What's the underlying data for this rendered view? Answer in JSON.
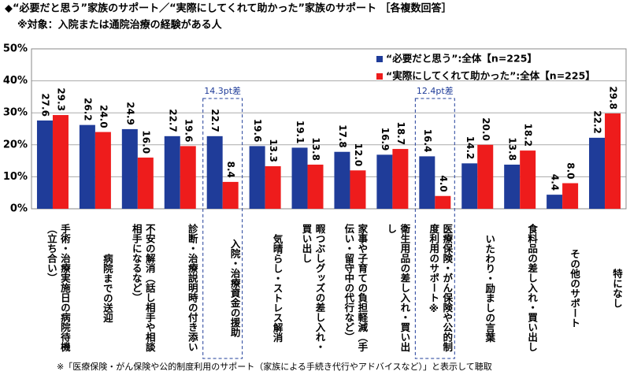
{
  "chart_data": {
    "type": "bar",
    "title": "◆“必要だと思う”家族のサポート／“実際にしてくれて助かった”家族のサポート ［各複数回答］",
    "subtitle": "※対象：入院または通院治療の経験がある人",
    "footnote": "※「医療保険・がん保険や公的制度利用のサポート（家族による手続き代行やアドバイスなど）」と表示して聴取",
    "categories": [
      "手術・治療実施日の病院待機（立ち合い）",
      "病院までの送迎",
      "不安の解消（話し相手や相談相手になるなど）",
      "診断・治療説明時の付き添い",
      "入院・治療資金の援助",
      "気晴らし・ストレス解消",
      "暇つぶしグッズの差し入れ・買い出し",
      "家事や子育ての負担軽減（手伝い・留守中の代行など）",
      "衛生用品の差し入れ・買い出し",
      "医療保険・がん保険や公的制度利用のサポート※",
      "いたわり・励ましの言葉",
      "食料品の差し入れ・買い出し",
      "その他のサポート",
      "特になし"
    ],
    "series": [
      {
        "name": "“必要だと思う”:全体【n=225】",
        "color": "#1f3c99",
        "values": [
          27.6,
          26.2,
          24.9,
          22.7,
          22.7,
          19.6,
          19.1,
          17.8,
          16.9,
          16.4,
          14.2,
          13.8,
          4.4,
          22.2
        ],
        "value_labels": [
          "27.6",
          "26.2",
          "24.9",
          "22.7",
          "22.7",
          "19.6",
          "19.1",
          "17.8",
          "16.9",
          "16.4",
          "14.2",
          "13.8",
          "4.4",
          "22.2"
        ]
      },
      {
        "name": "“実際にしてくれて助かった”:全体【n=225】",
        "color": "#ee1c1c",
        "values": [
          29.3,
          24.0,
          16.0,
          19.6,
          8.4,
          13.3,
          13.8,
          12.0,
          18.7,
          4.0,
          20.0,
          18.2,
          8.0,
          29.8
        ],
        "value_labels": [
          "29.3",
          "24.0",
          "16.0",
          "19.6",
          "8.4",
          "13.3",
          "13.8",
          "12.0",
          "18.7",
          "4.0",
          "20.0",
          "18.2",
          "8.0",
          "29.8"
        ]
      }
    ],
    "annotations": [
      {
        "category": 4,
        "text": "14.3pt差"
      },
      {
        "category": 9,
        "text": "12.4pt差"
      }
    ],
    "ylim": [
      0,
      50
    ],
    "yticks": [
      {
        "value": 0,
        "label": "0%"
      },
      {
        "value": 10,
        "label": "10%"
      },
      {
        "value": 20,
        "label": "20%"
      },
      {
        "value": 30,
        "label": "30%"
      },
      {
        "value": 40,
        "label": "40%"
      },
      {
        "value": 50,
        "label": "50%"
      }
    ],
    "grid": true,
    "legend": "upper right"
  }
}
